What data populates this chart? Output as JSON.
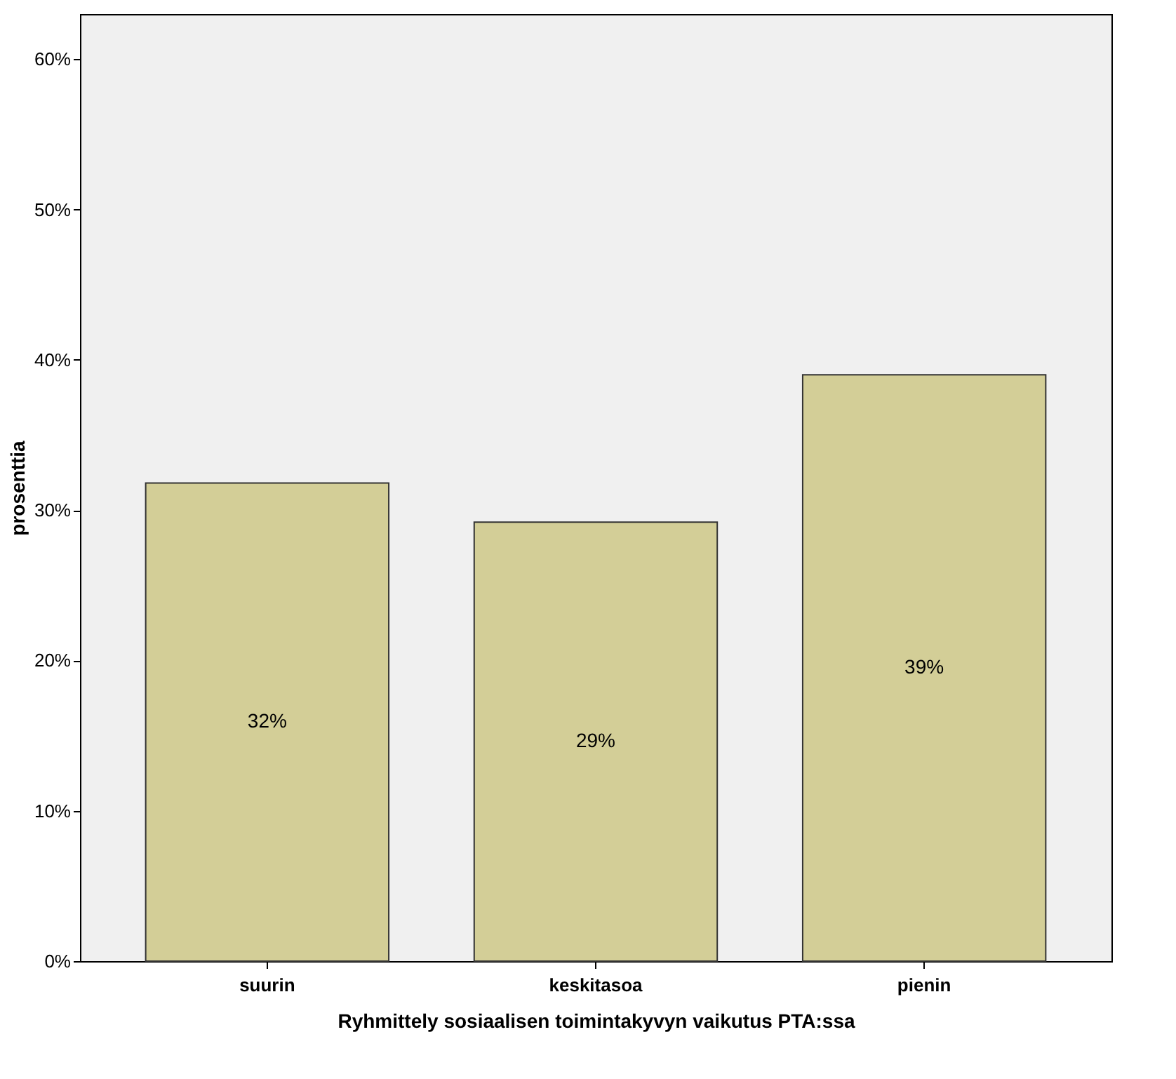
{
  "chart_data": {
    "type": "bar",
    "xlabel": "Ryhmittely sosiaalisen toimintakyvyn vaikutus PTA:ssa",
    "ylabel": "prosenttia",
    "categories": [
      "suurin",
      "keskitasoa",
      "pienin"
    ],
    "values": [
      31.8,
      29.2,
      39.0
    ],
    "value_labels": [
      "32%",
      "29%",
      "39%"
    ],
    "color": "#d3ce97",
    "ylim": [
      0,
      63
    ],
    "yticks": [
      {
        "value": 0,
        "label": "0%"
      },
      {
        "value": 10,
        "label": "10%"
      },
      {
        "value": 20,
        "label": "20%"
      },
      {
        "value": 30,
        "label": "30%"
      },
      {
        "value": 40,
        "label": "40%"
      },
      {
        "value": 50,
        "label": "50%"
      },
      {
        "value": 60,
        "label": "60%"
      }
    ],
    "grid": false
  }
}
